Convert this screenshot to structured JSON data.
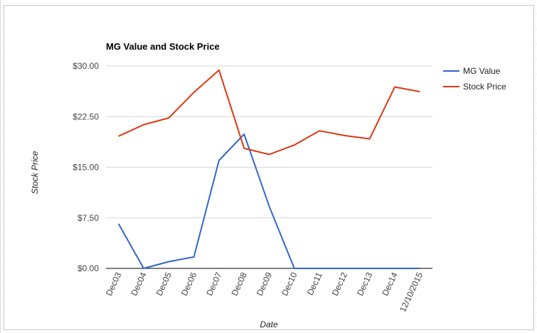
{
  "chart_data": {
    "type": "line",
    "title": "MG Value and Stock Price",
    "xlabel": "Date",
    "ylabel": "Stock Price",
    "categories": [
      "Dec03",
      "Dec04",
      "Dec05",
      "Dec06",
      "Dec07",
      "Dec08",
      "Dec09",
      "Dec10",
      "Dec11",
      "Dec12",
      "Dec13",
      "Dec14",
      "12/10/2015"
    ],
    "ylim": [
      0,
      30
    ],
    "yticks": [
      "$0.00",
      "$7.50",
      "$15.00",
      "$22.50",
      "$30.00"
    ],
    "grid": true,
    "legend_position": "right",
    "series": [
      {
        "name": "MG Value",
        "color": "#3366cc",
        "values": [
          6.6,
          0.0,
          1.0,
          1.7,
          16.0,
          19.9,
          9.2,
          0.0,
          0.0,
          0.0,
          0.0,
          0.0,
          0.0
        ]
      },
      {
        "name": "Stock Price",
        "color": "#dc3912",
        "values": [
          19.6,
          21.3,
          22.3,
          26.1,
          29.4,
          17.8,
          16.9,
          18.3,
          20.4,
          19.7,
          19.2,
          26.9,
          26.2
        ]
      }
    ]
  }
}
